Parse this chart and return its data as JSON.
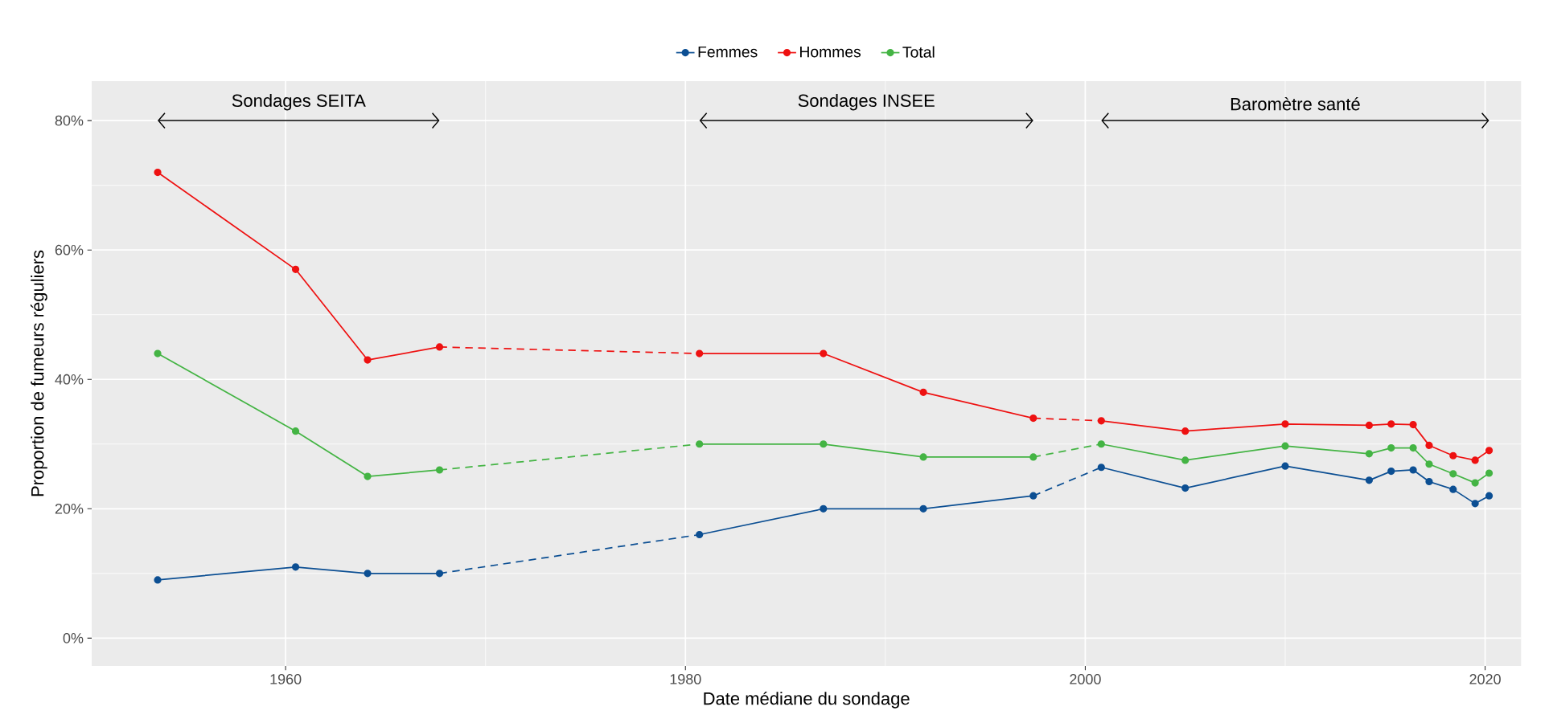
{
  "chart_data": {
    "type": "line",
    "xlabel": "Date médiane du sondage",
    "ylabel": "Proportion de fumeurs réguliers",
    "xlim": [
      1950.3,
      2021.8
    ],
    "xticks": [
      1960,
      1980,
      2000,
      2020
    ],
    "ylim": [
      -4.3,
      86.1
    ],
    "yticks": [
      {
        "value": 0,
        "label": "0%"
      },
      {
        "value": 20,
        "label": "20%"
      },
      {
        "value": 40,
        "label": "40%"
      },
      {
        "value": 60,
        "label": "60%"
      },
      {
        "value": 80,
        "label": "80%"
      }
    ],
    "grid": true,
    "legend": "top",
    "marker": "circle",
    "line_style": "solid",
    "annotations": [
      "Sondages SEITA",
      "Sondages INSEE",
      "Baromètre santé"
    ],
    "series": [
      {
        "name": "Femmes",
        "color": "#0c4f93",
        "x": [
          1953.6,
          1960.5,
          1964.1,
          1967.7
        ],
        "values": [
          9,
          11,
          10,
          10
        ]
      },
      {
        "color": "#0c4f93",
        "x": [
          1980.7,
          1986.9,
          1991.9,
          1997.4
        ],
        "values": [
          16,
          20,
          20,
          22
        ]
      },
      {
        "color": "#0c4f93",
        "x": [
          2000.8,
          2005.0,
          2010.0,
          2014.2,
          2015.3,
          2016.4,
          2017.2,
          2018.4,
          2019.5,
          2020.2
        ],
        "values": [
          26.4,
          23.2,
          26.6,
          24.4,
          25.8,
          26,
          24.2,
          23,
          20.8,
          22
        ]
      },
      {
        "color": "#0c4f93",
        "x": [
          1967.7,
          1980.7
        ],
        "values": [
          10,
          16
        ],
        "line_style": "dashed",
        "marker": "none"
      },
      {
        "color": "#0c4f93",
        "x": [
          1997.4,
          2000.8
        ],
        "values": [
          22,
          26.4
        ],
        "line_style": "dashed",
        "marker": "none"
      },
      {
        "name": "Hommes",
        "color": "#ee1111",
        "x": [
          1953.6,
          1960.5,
          1964.1,
          1967.7
        ],
        "values": [
          72,
          57,
          43,
          45
        ]
      },
      {
        "color": "#ee1111",
        "x": [
          1980.7,
          1986.9,
          1991.9,
          1997.4
        ],
        "values": [
          44,
          44,
          38,
          34
        ]
      },
      {
        "color": "#ee1111",
        "x": [
          2000.8,
          2005.0,
          2010.0,
          2014.2,
          2015.3,
          2016.4,
          2017.2,
          2018.4,
          2019.5,
          2020.2
        ],
        "values": [
          33.6,
          32,
          33.1,
          32.9,
          33.1,
          33,
          29.8,
          28.2,
          27.5,
          29
        ]
      },
      {
        "color": "#ee1111",
        "x": [
          1967.7,
          1980.7
        ],
        "values": [
          45,
          44
        ],
        "line_style": "dashed",
        "marker": "none"
      },
      {
        "color": "#ee1111",
        "x": [
          1997.4,
          2000.8
        ],
        "values": [
          34,
          33.6
        ],
        "line_style": "dashed",
        "marker": "none"
      },
      {
        "name": "Total",
        "color": "#44b444",
        "x": [
          1953.6,
          1960.5,
          1964.1,
          1967.7
        ],
        "values": [
          44,
          32,
          25,
          26
        ]
      },
      {
        "color": "#44b444",
        "x": [
          1980.7,
          1986.9,
          1991.9,
          1997.4
        ],
        "values": [
          30,
          30,
          28,
          28
        ]
      },
      {
        "color": "#44b444",
        "x": [
          2000.8,
          2005.0,
          2010.0,
          2014.2,
          2015.3,
          2016.4,
          2017.2,
          2018.4,
          2019.5,
          2020.2
        ],
        "values": [
          30,
          27.5,
          29.7,
          28.5,
          29.4,
          29.4,
          26.9,
          25.4,
          24,
          25.5
        ]
      },
      {
        "color": "#44b444",
        "x": [
          1967.7,
          1980.7
        ],
        "values": [
          26,
          30
        ],
        "line_style": "dashed",
        "marker": "none"
      },
      {
        "color": "#44b444",
        "x": [
          1997.4,
          2000.8
        ],
        "values": [
          28,
          30
        ],
        "line_style": "dashed",
        "marker": "none"
      }
    ]
  }
}
